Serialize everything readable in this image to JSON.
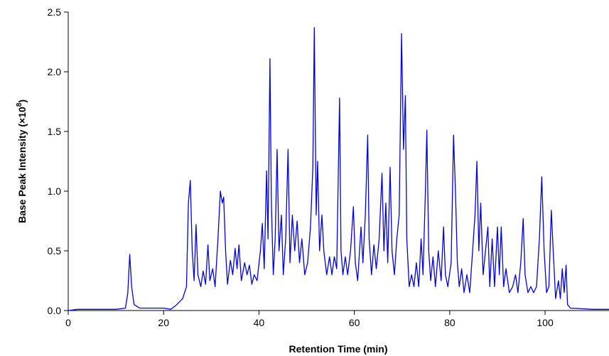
{
  "chart_data": {
    "type": "line",
    "xlabel": "Retention Time (min)",
    "ylabel": "Base Peak Intensity (×10",
    "ylabel_exp": "8",
    "ylabel_end": ")",
    "color": "#0000e0",
    "xlim": [
      0,
      113.4
    ],
    "ylim": [
      0,
      2.5
    ],
    "xticks": [
      0,
      20,
      40,
      60,
      80,
      100
    ],
    "yticks": [
      {
        "value": 0,
        "label": "0.0"
      },
      0.5,
      {
        "value": 1,
        "label": "1.0"
      },
      1.5,
      {
        "value": 2,
        "label": "2.0"
      },
      2.5
    ],
    "x": [
      0,
      2,
      10,
      12,
      12.5,
      12.9,
      13.3,
      13.8,
      15,
      18,
      20,
      21.5,
      22.5,
      24,
      24.8,
      25.2,
      25.6,
      26,
      26.4,
      26.8,
      27.2,
      27.8,
      28.3,
      28.8,
      29.3,
      29.7,
      30.3,
      30.8,
      31.4,
      31.9,
      32.3,
      32.6,
      33,
      33.4,
      34,
      34.5,
      35,
      35.4,
      35.8,
      36.3,
      37,
      37.5,
      38,
      38.5,
      39,
      39.6,
      40.3,
      40.7,
      41.1,
      41.6,
      41.9,
      42.3,
      42.6,
      43,
      43.4,
      43.8,
      44.2,
      44.7,
      45.1,
      45.6,
      46.1,
      46.5,
      47,
      47.5,
      48,
      48.5,
      49,
      49.6,
      50.2,
      50.8,
      51.3,
      51.6,
      52,
      52.3,
      52.7,
      53.2,
      53.6,
      54.2,
      54.8,
      55.3,
      55.8,
      56.3,
      56.9,
      57.2,
      57.6,
      58.1,
      58.6,
      59.2,
      59.8,
      60.2,
      60.7,
      61.4,
      61.8,
      62.3,
      62.8,
      63.1,
      63.6,
      64.1,
      64.6,
      65.2,
      65.8,
      66.2,
      66.6,
      67,
      67.5,
      67.9,
      68.4,
      68.9,
      69.4,
      69.9,
      70.3,
      70.7,
      71,
      71.5,
      72,
      72.5,
      73,
      73.5,
      74,
      74.4,
      74.9,
      75.2,
      75.6,
      76,
      76.5,
      77,
      77.6,
      78.2,
      78.7,
      79.1,
      79.6,
      80.3,
      80.8,
      81.2,
      81.6,
      82,
      82.5,
      83,
      83.6,
      84.2,
      84.8,
      85.3,
      85.7,
      86.1,
      86.5,
      87,
      87.5,
      88,
      88.4,
      88.9,
      89.4,
      90,
      90.4,
      90.8,
      91.3,
      91.8,
      92.5,
      93.2,
      93.8,
      94.3,
      94.9,
      95.4,
      95.8,
      96.4,
      97,
      97.6,
      98.2,
      98.8,
      99.3,
      99.8,
      100.3,
      100.8,
      101.3,
      101.7,
      102.2,
      102.8,
      103.2,
      103.6,
      104,
      104.4,
      104.7,
      105.3,
      110,
      113.4
    ],
    "values": [
      0,
      0.01,
      0.01,
      0.02,
      0.15,
      0.47,
      0.2,
      0.05,
      0.02,
      0.02,
      0.02,
      0.01,
      0.04,
      0.1,
      0.2,
      0.9,
      1.09,
      0.5,
      0.25,
      0.72,
      0.3,
      0.2,
      0.33,
      0.22,
      0.55,
      0.25,
      0.35,
      0.2,
      0.6,
      1.0,
      0.9,
      0.95,
      0.5,
      0.22,
      0.42,
      0.3,
      0.52,
      0.35,
      0.55,
      0.25,
      0.4,
      0.3,
      0.38,
      0.22,
      0.3,
      0.25,
      0.5,
      0.73,
      0.35,
      1.17,
      0.6,
      2.11,
      0.9,
      0.3,
      0.6,
      1.35,
      0.5,
      0.8,
      0.3,
      0.6,
      1.35,
      0.4,
      0.8,
      0.5,
      0.75,
      0.4,
      0.6,
      0.3,
      0.4,
      0.7,
      1.2,
      2.37,
      0.8,
      1.25,
      0.5,
      0.8,
      0.5,
      0.3,
      0.45,
      0.3,
      0.45,
      0.35,
      1.78,
      0.5,
      0.3,
      0.45,
      0.3,
      0.5,
      0.87,
      0.4,
      0.25,
      0.7,
      0.4,
      0.8,
      1.47,
      0.6,
      0.3,
      0.55,
      0.35,
      0.6,
      1.15,
      0.5,
      0.9,
      0.4,
      1.2,
      0.5,
      0.3,
      0.6,
      0.8,
      2.32,
      1.35,
      1.8,
      0.6,
      0.2,
      0.3,
      0.2,
      0.4,
      0.2,
      0.6,
      0.3,
      1.0,
      1.51,
      0.5,
      0.25,
      0.45,
      0.2,
      0.5,
      0.25,
      0.7,
      0.3,
      0.2,
      0.4,
      1.47,
      1.0,
      0.4,
      0.2,
      0.35,
      0.15,
      0.3,
      0.15,
      0.5,
      0.8,
      1.25,
      0.5,
      0.9,
      0.3,
      0.5,
      0.7,
      0.2,
      0.6,
      0.2,
      0.7,
      0.3,
      0.7,
      0.2,
      0.35,
      0.15,
      0.2,
      0.3,
      0.15,
      0.4,
      0.77,
      0.3,
      0.15,
      0.2,
      0.15,
      0.2,
      0.6,
      1.12,
      0.5,
      0.15,
      0.2,
      0.84,
      0.5,
      0.1,
      0.25,
      0.1,
      0.35,
      0.15,
      0.38,
      0.05,
      0.02,
      0.01,
      0.01
    ]
  }
}
